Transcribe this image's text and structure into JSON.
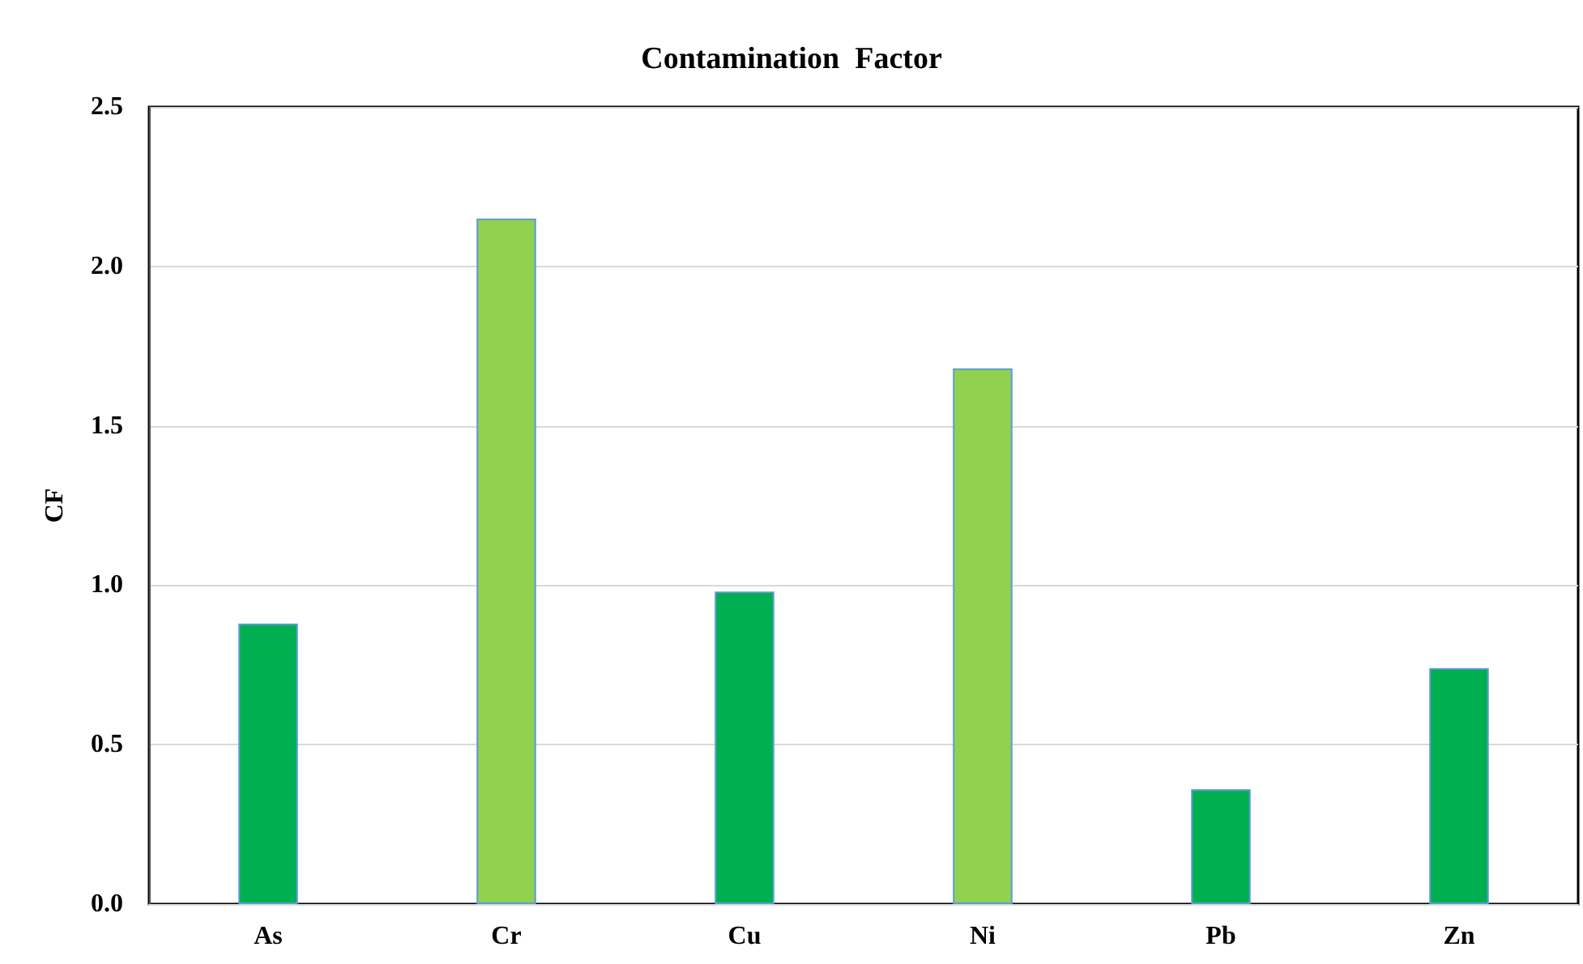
{
  "chart_data": {
    "type": "bar",
    "title": "Contamination  Factor",
    "ylabel": "CF",
    "categories": [
      "As",
      "Cr",
      "Cu",
      "Ni",
      "Pb",
      "Zn"
    ],
    "values": [
      0.88,
      2.15,
      0.98,
      1.68,
      0.36,
      0.74
    ],
    "colors": [
      "#00b050",
      "#92d050",
      "#00b050",
      "#92d050",
      "#00b050",
      "#00b050"
    ],
    "ylim": [
      0,
      2.5
    ],
    "yticks": [
      {
        "value": 0,
        "label": "0.0"
      },
      0.5,
      {
        "value": 1,
        "label": "1.0"
      },
      1.5,
      {
        "value": 2,
        "label": "2.0"
      },
      2.5
    ],
    "grid": "y"
  }
}
